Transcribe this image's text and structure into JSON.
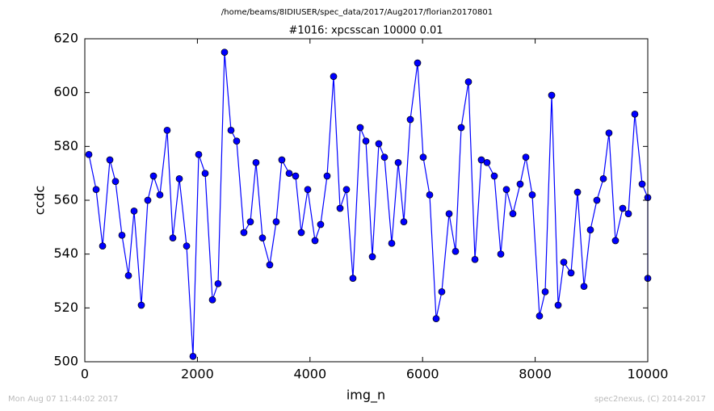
{
  "chart_data": {
    "type": "line",
    "suptitle": "/home/beams/8IDIUSER/spec_data/2017/Aug2017/florian20170801",
    "title": "#1016: xpcsscan 10000 0.01",
    "x_label": "img_n",
    "y_label": "ccdc",
    "footer_left": "Mon Aug 07 11:44:02 2017",
    "footer_right": "spec2nexus, (C) 2014-2017",
    "x": [
      72,
      201,
      316,
      445,
      545,
      660,
      775,
      875,
      1004,
      1119,
      1220,
      1334,
      1463,
      1564,
      1679,
      1808,
      1922,
      2023,
      2138,
      2267,
      2367,
      2482,
      2597,
      2697,
      2826,
      2941,
      3041,
      3156,
      3285,
      3400,
      3500,
      3630,
      3744,
      3845,
      3960,
      4089,
      4189,
      4304,
      4419,
      4534,
      4648,
      4763,
      4892,
      4993,
      5108,
      5222,
      5323,
      5452,
      5567,
      5667,
      5782,
      5911,
      6011,
      6126,
      6241,
      6341,
      6471,
      6585,
      6686,
      6815,
      6930,
      7044,
      7145,
      7274,
      7389,
      7489,
      7604,
      7733,
      7834,
      7948,
      8077,
      8178,
      8293,
      8408,
      8508,
      8637,
      8752,
      8867,
      8981,
      9096,
      9211,
      9311,
      9426,
      9555,
      9656,
      9770,
      9900,
      10000,
      10000
    ],
    "series": [
      {
        "name": "ccdc",
        "color": "#0000ff",
        "values": [
          577,
          564,
          543,
          575,
          567,
          547,
          532,
          556,
          521,
          560,
          569,
          562,
          586,
          546,
          568,
          543,
          502,
          577,
          570,
          523,
          529,
          615,
          586,
          582,
          548,
          552,
          574,
          546,
          536,
          552,
          575,
          570,
          569,
          548,
          564,
          545,
          551,
          569,
          606,
          557,
          564,
          531,
          587,
          582,
          539,
          581,
          576,
          544,
          574,
          552,
          590,
          611,
          576,
          562,
          516,
          526,
          555,
          541,
          587,
          604,
          538,
          575,
          574,
          569,
          540,
          564,
          555,
          566,
          576,
          562,
          517,
          526,
          599,
          521,
          537,
          533,
          563,
          528,
          549,
          560,
          568,
          585,
          545,
          557,
          555,
          592,
          566,
          561,
          531
        ]
      }
    ],
    "xlim": [
      0,
      10000
    ],
    "ylim": [
      500,
      620
    ],
    "xticks": [
      0,
      2000,
      4000,
      6000,
      8000,
      10000
    ],
    "yticks": [
      500,
      520,
      540,
      560,
      580,
      600,
      620
    ]
  }
}
